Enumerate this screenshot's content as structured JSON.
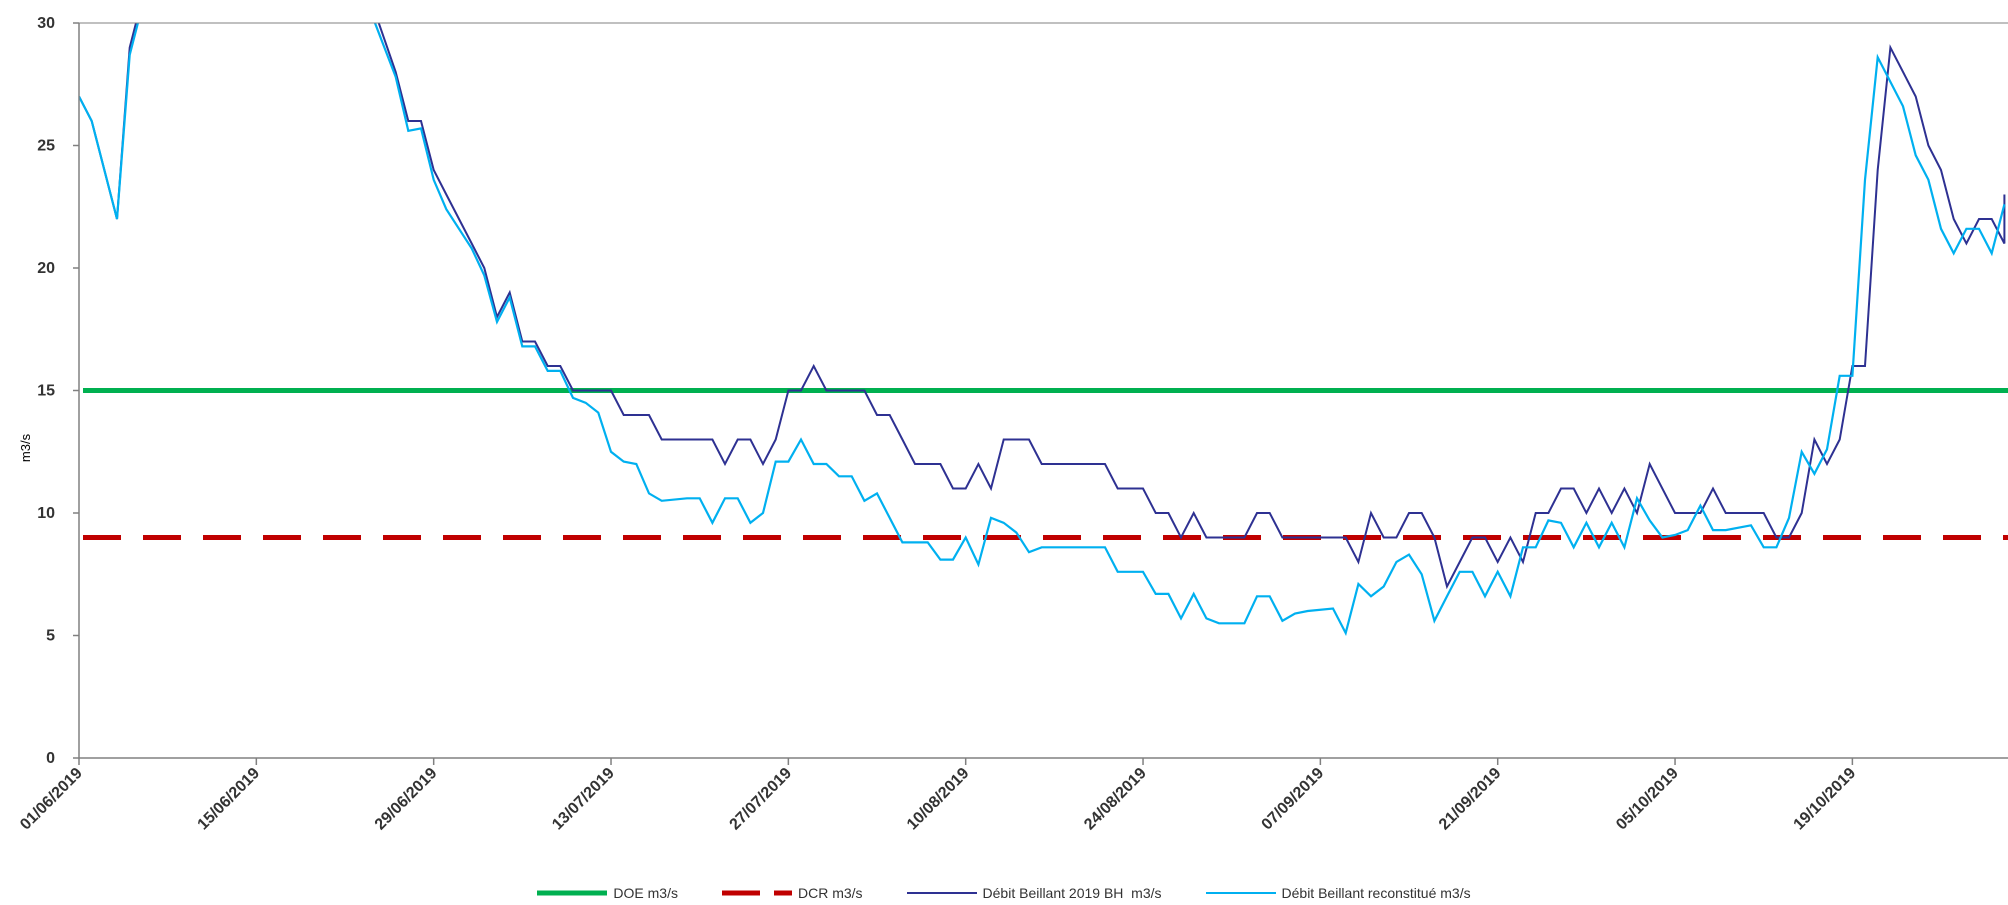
{
  "chart_data": {
    "type": "line",
    "title": "",
    "xlabel": "",
    "ylabel": "m3/s",
    "ylim": [
      0,
      30
    ],
    "yticks": [
      "0",
      "5",
      "10",
      "15",
      "20",
      "25",
      "30"
    ],
    "x_start": "01/06/2019",
    "x_end": "31/10/2019",
    "xticks": [
      "01/06/2019",
      "15/06/2019",
      "29/06/2019",
      "13/07/2019",
      "27/07/2019",
      "10/08/2019",
      "24/08/2019",
      "07/09/2019",
      "21/09/2019",
      "05/10/2019",
      "19/10/2019"
    ],
    "grid": false,
    "legend_position": "bottom",
    "series": [
      {
        "name": "DOE m3/s",
        "color": "#00b050",
        "style": "solid",
        "constant": 15
      },
      {
        "name": "DCR m3/s",
        "color": "#c00000",
        "style": "dashed",
        "constant": 9
      },
      {
        "name": "Débit Beillant 2019 BH  m3/s",
        "color": "#2e3192",
        "style": "solid",
        "points": [
          [
            "01/06/2019",
            27
          ],
          [
            "02/06/2019",
            26
          ],
          [
            "04/06/2019",
            22
          ],
          [
            "05/06/2019",
            29
          ],
          [
            "06/06/2019",
            31
          ],
          [
            "24/06/2019",
            31
          ],
          [
            "26/06/2019",
            28
          ],
          [
            "27/06/2019",
            26
          ],
          [
            "28/06/2019",
            26
          ],
          [
            "29/06/2019",
            24
          ],
          [
            "30/06/2019",
            23
          ],
          [
            "02/07/2019",
            21
          ],
          [
            "03/07/2019",
            20
          ],
          [
            "04/07/2019",
            18
          ],
          [
            "05/07/2019",
            19
          ],
          [
            "06/07/2019",
            17
          ],
          [
            "07/07/2019",
            17
          ],
          [
            "08/07/2019",
            16
          ],
          [
            "09/07/2019",
            16
          ],
          [
            "10/07/2019",
            15
          ],
          [
            "12/07/2019",
            15
          ],
          [
            "13/07/2019",
            15
          ],
          [
            "14/07/2019",
            14
          ],
          [
            "16/07/2019",
            14
          ],
          [
            "17/07/2019",
            13
          ],
          [
            "21/07/2019",
            13
          ],
          [
            "22/07/2019",
            12
          ],
          [
            "23/07/2019",
            13
          ],
          [
            "24/07/2019",
            13
          ],
          [
            "25/07/2019",
            12
          ],
          [
            "26/07/2019",
            13
          ],
          [
            "27/07/2019",
            15
          ],
          [
            "28/07/2019",
            15
          ],
          [
            "29/07/2019",
            16
          ],
          [
            "30/07/2019",
            15
          ],
          [
            "02/08/2019",
            15
          ],
          [
            "03/08/2019",
            14
          ],
          [
            "04/08/2019",
            14
          ],
          [
            "05/08/2019",
            13
          ],
          [
            "06/08/2019",
            12
          ],
          [
            "08/08/2019",
            12
          ],
          [
            "09/08/2019",
            11
          ],
          [
            "10/08/2019",
            11
          ],
          [
            "11/08/2019",
            12
          ],
          [
            "12/08/2019",
            11
          ],
          [
            "13/08/2019",
            13
          ],
          [
            "15/08/2019",
            13
          ],
          [
            "16/08/2019",
            12
          ],
          [
            "21/08/2019",
            12
          ],
          [
            "22/08/2019",
            11
          ],
          [
            "24/08/2019",
            11
          ],
          [
            "25/08/2019",
            10
          ],
          [
            "26/08/2019",
            10
          ],
          [
            "27/08/2019",
            9
          ],
          [
            "28/08/2019",
            10
          ],
          [
            "29/08/2019",
            9
          ],
          [
            "01/09/2019",
            9
          ],
          [
            "02/09/2019",
            10
          ],
          [
            "03/09/2019",
            10
          ],
          [
            "04/09/2019",
            9
          ],
          [
            "09/09/2019",
            9
          ],
          [
            "10/09/2019",
            8
          ],
          [
            "11/09/2019",
            10
          ],
          [
            "12/09/2019",
            9
          ],
          [
            "13/09/2019",
            9
          ],
          [
            "14/09/2019",
            10
          ],
          [
            "15/09/2019",
            10
          ],
          [
            "16/09/2019",
            9
          ],
          [
            "17/09/2019",
            7
          ],
          [
            "18/09/2019",
            8
          ],
          [
            "19/09/2019",
            9
          ],
          [
            "20/09/2019",
            9
          ],
          [
            "21/09/2019",
            8
          ],
          [
            "22/09/2019",
            9
          ],
          [
            "23/09/2019",
            8
          ],
          [
            "24/09/2019",
            10
          ],
          [
            "25/09/2019",
            10
          ],
          [
            "26/09/2019",
            11
          ],
          [
            "27/09/2019",
            11
          ],
          [
            "28/09/2019",
            10
          ],
          [
            "29/09/2019",
            11
          ],
          [
            "30/09/2019",
            10
          ],
          [
            "01/10/2019",
            11
          ],
          [
            "02/10/2019",
            10
          ],
          [
            "03/10/2019",
            12
          ],
          [
            "05/10/2019",
            10
          ],
          [
            "07/10/2019",
            10
          ],
          [
            "08/10/2019",
            11
          ],
          [
            "09/10/2019",
            10
          ],
          [
            "12/10/2019",
            10
          ],
          [
            "13/10/2019",
            9
          ],
          [
            "14/10/2019",
            9
          ],
          [
            "15/10/2019",
            10
          ],
          [
            "16/10/2019",
            13
          ],
          [
            "17/10/2019",
            12
          ],
          [
            "18/10/2019",
            13
          ],
          [
            "19/10/2019",
            16
          ],
          [
            "20/10/2019",
            16
          ],
          [
            "21/10/2019",
            24
          ],
          [
            "22/10/2019",
            29
          ],
          [
            "24/10/2019",
            27
          ],
          [
            "25/10/2019",
            25
          ],
          [
            "26/10/2019",
            24
          ],
          [
            "27/10/2019",
            22
          ],
          [
            "28/10/2019",
            21
          ],
          [
            "29/10/2019",
            22
          ],
          [
            "30/10/2019",
            22
          ],
          [
            "31/10/2019",
            21
          ],
          [
            "31/10/2019",
            23
          ]
        ]
      },
      {
        "name": "Débit Beillant reconstitué m3/s",
        "color": "#00b0f0",
        "style": "solid",
        "points": [
          [
            "01/06/2019",
            27
          ],
          [
            "02/06/2019",
            26
          ],
          [
            "04/06/2019",
            22
          ],
          [
            "05/06/2019",
            28.7
          ],
          [
            "06/06/2019",
            30.7
          ],
          [
            "24/06/2019",
            30.5
          ],
          [
            "26/06/2019",
            27.8
          ],
          [
            "27/06/2019",
            25.6
          ],
          [
            "28/06/2019",
            25.7
          ],
          [
            "29/06/2019",
            23.6
          ],
          [
            "30/06/2019",
            22.4
          ],
          [
            "02/07/2019",
            20.8
          ],
          [
            "03/07/2019",
            19.7
          ],
          [
            "04/07/2019",
            17.8
          ],
          [
            "05/07/2019",
            18.8
          ],
          [
            "06/07/2019",
            16.8
          ],
          [
            "07/07/2019",
            16.8
          ],
          [
            "08/07/2019",
            15.8
          ],
          [
            "09/07/2019",
            15.8
          ],
          [
            "10/07/2019",
            14.7
          ],
          [
            "11/07/2019",
            14.5
          ],
          [
            "12/07/2019",
            14.1
          ],
          [
            "13/07/2019",
            12.5
          ],
          [
            "14/07/2019",
            12.1
          ],
          [
            "15/07/2019",
            12
          ],
          [
            "16/07/2019",
            10.8
          ],
          [
            "17/07/2019",
            10.5
          ],
          [
            "19/07/2019",
            10.6
          ],
          [
            "20/07/2019",
            10.6
          ],
          [
            "21/07/2019",
            9.6
          ],
          [
            "22/07/2019",
            10.6
          ],
          [
            "23/07/2019",
            10.6
          ],
          [
            "24/07/2019",
            9.6
          ],
          [
            "25/07/2019",
            10
          ],
          [
            "26/07/2019",
            12.1
          ],
          [
            "27/07/2019",
            12.1
          ],
          [
            "28/07/2019",
            13
          ],
          [
            "29/07/2019",
            12
          ],
          [
            "30/07/2019",
            12
          ],
          [
            "31/07/2019",
            11.5
          ],
          [
            "01/08/2019",
            11.5
          ],
          [
            "02/08/2019",
            10.5
          ],
          [
            "03/08/2019",
            10.8
          ],
          [
            "04/08/2019",
            9.8
          ],
          [
            "05/08/2019",
            8.8
          ],
          [
            "07/08/2019",
            8.8
          ],
          [
            "08/08/2019",
            8.1
          ],
          [
            "09/08/2019",
            8.1
          ],
          [
            "10/08/2019",
            9
          ],
          [
            "11/08/2019",
            7.9
          ],
          [
            "12/08/2019",
            9.8
          ],
          [
            "13/08/2019",
            9.6
          ],
          [
            "14/08/2019",
            9.2
          ],
          [
            "15/08/2019",
            8.4
          ],
          [
            "16/08/2019",
            8.6
          ],
          [
            "21/08/2019",
            8.6
          ],
          [
            "22/08/2019",
            7.6
          ],
          [
            "24/08/2019",
            7.6
          ],
          [
            "25/08/2019",
            6.7
          ],
          [
            "26/08/2019",
            6.7
          ],
          [
            "27/08/2019",
            5.7
          ],
          [
            "28/08/2019",
            6.7
          ],
          [
            "29/08/2019",
            5.7
          ],
          [
            "30/08/2019",
            5.5
          ],
          [
            "01/09/2019",
            5.5
          ],
          [
            "02/09/2019",
            6.6
          ],
          [
            "03/09/2019",
            6.6
          ],
          [
            "04/09/2019",
            5.6
          ],
          [
            "05/09/2019",
            5.9
          ],
          [
            "06/09/2019",
            6
          ],
          [
            "08/09/2019",
            6.1
          ],
          [
            "09/09/2019",
            5.1
          ],
          [
            "10/09/2019",
            7.1
          ],
          [
            "11/09/2019",
            6.6
          ],
          [
            "12/09/2019",
            7
          ],
          [
            "13/09/2019",
            8
          ],
          [
            "14/09/2019",
            8.3
          ],
          [
            "15/09/2019",
            7.5
          ],
          [
            "16/09/2019",
            5.6
          ],
          [
            "17/09/2019",
            6.6
          ],
          [
            "18/09/2019",
            7.6
          ],
          [
            "19/09/2019",
            7.6
          ],
          [
            "20/09/2019",
            6.6
          ],
          [
            "21/09/2019",
            7.6
          ],
          [
            "22/09/2019",
            6.6
          ],
          [
            "23/09/2019",
            8.6
          ],
          [
            "24/09/2019",
            8.6
          ],
          [
            "25/09/2019",
            9.7
          ],
          [
            "26/09/2019",
            9.6
          ],
          [
            "27/09/2019",
            8.6
          ],
          [
            "28/09/2019",
            9.6
          ],
          [
            "29/09/2019",
            8.6
          ],
          [
            "30/09/2019",
            9.6
          ],
          [
            "01/10/2019",
            8.6
          ],
          [
            "02/10/2019",
            10.6
          ],
          [
            "03/10/2019",
            9.7
          ],
          [
            "04/10/2019",
            9
          ],
          [
            "05/10/2019",
            9.1
          ],
          [
            "06/10/2019",
            9.3
          ],
          [
            "07/10/2019",
            10.3
          ],
          [
            "08/10/2019",
            9.3
          ],
          [
            "09/10/2019",
            9.3
          ],
          [
            "11/10/2019",
            9.5
          ],
          [
            "12/10/2019",
            8.6
          ],
          [
            "13/10/2019",
            8.6
          ],
          [
            "14/10/2019",
            9.8
          ],
          [
            "15/10/2019",
            12.5
          ],
          [
            "16/10/2019",
            11.6
          ],
          [
            "17/10/2019",
            12.6
          ],
          [
            "18/10/2019",
            15.6
          ],
          [
            "19/10/2019",
            15.6
          ],
          [
            "20/10/2019",
            23.6
          ],
          [
            "21/10/2019",
            28.6
          ],
          [
            "23/10/2019",
            26.6
          ],
          [
            "24/10/2019",
            24.6
          ],
          [
            "25/10/2019",
            23.6
          ],
          [
            "26/10/2019",
            21.6
          ],
          [
            "27/10/2019",
            20.6
          ],
          [
            "28/10/2019",
            21.6
          ],
          [
            "29/10/2019",
            21.6
          ],
          [
            "30/10/2019",
            20.6
          ],
          [
            "31/10/2019",
            22.6
          ]
        ]
      }
    ]
  }
}
